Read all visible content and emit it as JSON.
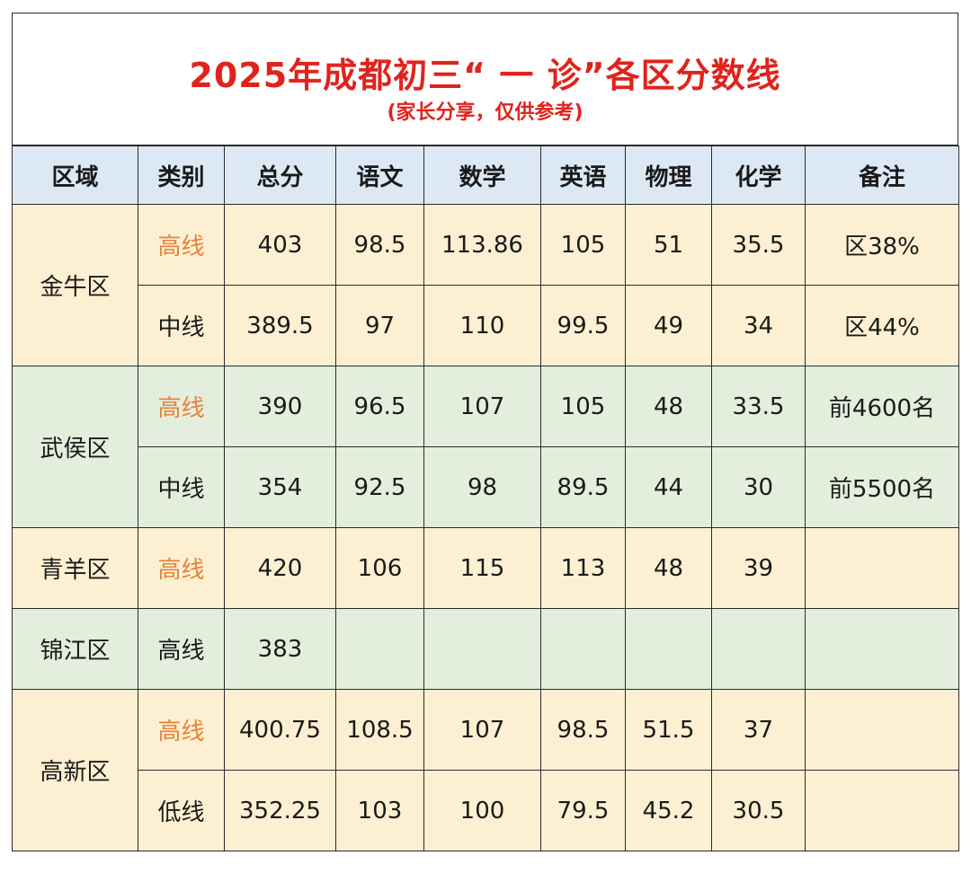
{
  "title": "2025年成都初三“ 一 诊”各区分数线",
  "subtitle": "(家长分享，仅供参考)",
  "headers": [
    "区域",
    "类别",
    "总分",
    "语文",
    "数学",
    "英语",
    "物理",
    "化学",
    "备注"
  ],
  "colors": {
    "title": "#e0231d",
    "high_line": "#e8823a",
    "header_bg": "#dce9f5",
    "yellow_bg": "#fdf0d2",
    "green_bg": "#e3eedd"
  },
  "rows": [
    {
      "district": "金牛区",
      "type": "高线",
      "total": "403",
      "chinese": "98.5",
      "math": "113.86",
      "english": "105",
      "physics": "51",
      "chemistry": "35.5",
      "note": "区38%"
    },
    {
      "district": "金牛区",
      "type": "中线",
      "total": "389.5",
      "chinese": "97",
      "math": "110",
      "english": "99.5",
      "physics": "49",
      "chemistry": "34",
      "note": "区44%"
    },
    {
      "district": "武侯区",
      "type": "高线",
      "total": "390",
      "chinese": "96.5",
      "math": "107",
      "english": "105",
      "physics": "48",
      "chemistry": "33.5",
      "note": "前4600名"
    },
    {
      "district": "武侯区",
      "type": "中线",
      "total": "354",
      "chinese": "92.5",
      "math": "98",
      "english": "89.5",
      "physics": "44",
      "chemistry": "30",
      "note": "前5500名"
    },
    {
      "district": "青羊区",
      "type": "高线",
      "total": "420",
      "chinese": "106",
      "math": "115",
      "english": "113",
      "physics": "48",
      "chemistry": "39",
      "note": ""
    },
    {
      "district": "锦江区",
      "type": "高线",
      "total": "383",
      "chinese": "",
      "math": "",
      "english": "",
      "physics": "",
      "chemistry": "",
      "note": ""
    },
    {
      "district": "高新区",
      "type": "高线",
      "total": "400.75",
      "chinese": "108.5",
      "math": "107",
      "english": "98.5",
      "physics": "51.5",
      "chemistry": "37",
      "note": ""
    },
    {
      "district": "高新区",
      "type": "低线",
      "total": "352.25",
      "chinese": "103",
      "math": "100",
      "english": "79.5",
      "physics": "45.2",
      "chemistry": "30.5",
      "note": ""
    }
  ]
}
